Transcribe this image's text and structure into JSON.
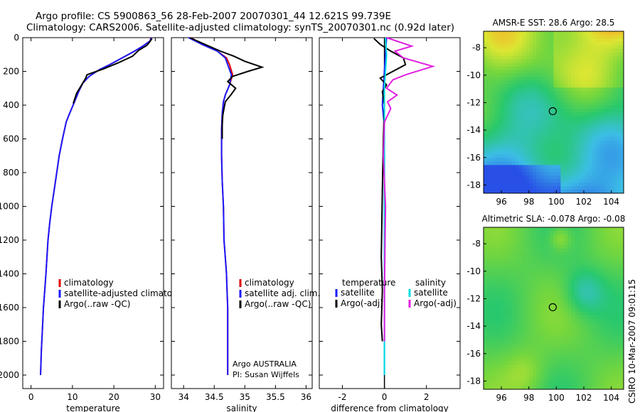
{
  "header": {
    "line1": "Argo profile: CS 5900863_56 28-Feb-2007 20070301_44 12.621S 99.739E",
    "line2": "Climatology: CARS2006. Satellite-adjusted climatology: synTS_20070301.nc (0.92d later)"
  },
  "side_label": "CSIRO 10-Mar-2007 09:01:15",
  "chart_data": [
    {
      "id": "temperature",
      "type": "line",
      "xlabel": "temperature",
      "ylabel": "",
      "xlim": [
        -2,
        32
      ],
      "ylim": [
        2080,
        0
      ],
      "xticks": [
        0,
        10,
        20,
        30
      ],
      "yticks": [
        0,
        200,
        400,
        600,
        800,
        1000,
        1200,
        1400,
        1600,
        1800,
        2000
      ],
      "legend": [
        "climatology",
        "satellite-adjusted climatology",
        "Argo(..raw -QC)"
      ],
      "series": [
        {
          "name": "climatology",
          "color": "#e00000",
          "x": [
            29.0,
            28.7,
            27.0,
            25.0,
            22.0,
            19.0,
            16.5,
            14.0,
            12.5,
            11.5,
            10.5,
            9.3,
            8.5,
            7.6,
            6.8,
            6.2,
            5.6,
            5.0,
            4.5,
            4.1,
            3.6,
            3.3,
            3.0,
            2.7,
            2.5,
            2.3
          ],
          "y": [
            0,
            20,
            50,
            80,
            120,
            160,
            190,
            230,
            270,
            320,
            380,
            450,
            500,
            600,
            700,
            800,
            900,
            1000,
            1100,
            1200,
            1400,
            1500,
            1600,
            1750,
            1850,
            2000
          ]
        },
        {
          "name": "satellite-adjusted climatology",
          "color": "#1a1aff",
          "x": [
            29.1,
            28.7,
            27.0,
            25.0,
            22.0,
            19.0,
            16.5,
            14.0,
            12.5,
            11.5,
            10.5,
            9.3,
            8.5,
            7.6,
            6.8,
            6.2,
            5.6,
            5.0,
            4.5,
            4.1,
            3.6,
            3.3,
            3.0,
            2.7,
            2.5,
            2.3
          ],
          "y": [
            0,
            20,
            50,
            80,
            120,
            160,
            190,
            230,
            270,
            320,
            380,
            450,
            500,
            600,
            700,
            800,
            900,
            1000,
            1100,
            1200,
            1400,
            1500,
            1600,
            1750,
            1850,
            2000
          ]
        },
        {
          "name": "Argo(..raw -QC)",
          "color": "#000000",
          "x": [
            29.2,
            28.8,
            28.0,
            26.0,
            24.5,
            21.0,
            17.5,
            13.5,
            13.2,
            11.0,
            10.2
          ],
          "y": [
            5,
            20,
            45,
            75,
            110,
            150,
            185,
            220,
            240,
            330,
            390
          ]
        }
      ]
    },
    {
      "id": "salinity",
      "type": "line",
      "xlabel": "salinity",
      "ylabel": "",
      "xlim": [
        33.8,
        36.1
      ],
      "ylim": [
        2080,
        0
      ],
      "xticks": [
        34,
        34.5,
        35,
        35.5,
        36
      ],
      "yticks": [
        0,
        200,
        400,
        600,
        800,
        1000,
        1200,
        1400,
        1600,
        1800,
        2000
      ],
      "legend": [
        "climatology",
        "satellite adj. clim.",
        "Argo(..raw -QC)"
      ],
      "series": [
        {
          "name": "climatology",
          "color": "#e00000",
          "x": [
            34.12,
            34.3,
            34.55,
            34.7,
            34.75,
            34.8,
            34.75,
            34.68,
            34.65,
            34.63,
            34.62,
            34.62,
            34.63,
            34.65,
            34.66,
            34.68,
            34.7,
            34.71,
            34.72,
            34.72,
            34.72
          ],
          "y": [
            0,
            40,
            80,
            120,
            160,
            220,
            280,
            340,
            380,
            450,
            550,
            700,
            850,
            1000,
            1200,
            1300,
            1400,
            1500,
            1600,
            1800,
            2000
          ]
        },
        {
          "name": "satellite adj. clim.",
          "color": "#1a1aff",
          "x": [
            34.08,
            34.3,
            34.55,
            34.68,
            34.72,
            34.78,
            34.75,
            34.68,
            34.65,
            34.63,
            34.62,
            34.62,
            34.63,
            34.65,
            34.66,
            34.68,
            34.7,
            34.71,
            34.72,
            34.72,
            34.72
          ],
          "y": [
            0,
            40,
            80,
            120,
            160,
            220,
            280,
            340,
            380,
            450,
            550,
            700,
            850,
            1000,
            1200,
            1300,
            1400,
            1500,
            1600,
            1800,
            2000
          ]
        },
        {
          "name": "Argo(..raw -QC)",
          "color": "#000000",
          "x": [
            34.1,
            34.35,
            34.6,
            34.82,
            35.0,
            35.28,
            35.05,
            34.8,
            34.72,
            34.85,
            34.77,
            34.68,
            34.66,
            34.64,
            34.63,
            34.63
          ],
          "y": [
            0,
            40,
            80,
            110,
            140,
            175,
            200,
            230,
            260,
            300,
            340,
            380,
            420,
            460,
            520,
            600
          ]
        }
      ]
    },
    {
      "id": "difference",
      "type": "line",
      "xlabel": "difference from climatology",
      "ylabel": "",
      "xlim": [
        -3.1,
        3.6
      ],
      "ylim": [
        2080,
        0
      ],
      "xticks": [
        -2,
        0,
        2
      ],
      "yticks": [
        0,
        200,
        400,
        600,
        800,
        1000,
        1200,
        1400,
        1600,
        1800,
        2000
      ],
      "legend_left_title": "temperature",
      "legend_right_title": "salinity",
      "legend_left": [
        "satellite",
        "Argo(-adj)"
      ],
      "legend_right": [
        "satellite",
        "Argo(-adj)"
      ],
      "series": [
        {
          "name": "temperature satellite",
          "color": "#1a1aff",
          "x": [
            0.1,
            0.05,
            0.0,
            -0.05,
            -0.1,
            -0.02,
            0.0,
            0.0,
            0.0,
            0.0
          ],
          "y": [
            0,
            100,
            200,
            300,
            400,
            500,
            700,
            1200,
            1600,
            2000
          ]
        },
        {
          "name": "temperature Argo(-adj)",
          "color": "#000000",
          "x": [
            -0.5,
            -0.2,
            0.3,
            0.9,
            1.0,
            0.4,
            -0.2,
            0.1,
            -0.1,
            0.0,
            -0.05,
            -0.1,
            -0.15,
            -0.1,
            -0.15,
            -0.1
          ],
          "y": [
            5,
            40,
            80,
            120,
            160,
            200,
            240,
            280,
            320,
            400,
            600,
            900,
            1300,
            1500,
            1700,
            1800
          ]
        },
        {
          "name": "salinity satellite",
          "color": "#00e0e0",
          "x": [
            0.05,
            0.1,
            0.05,
            0.0,
            0.0,
            0.0,
            0.0
          ],
          "y": [
            0,
            100,
            200,
            300,
            700,
            1500,
            2000
          ]
        },
        {
          "name": "salinity Argo(-adj)",
          "color": "#e020e0",
          "x": [
            0.1,
            1.3,
            0.5,
            0.9,
            2.3,
            1.0,
            0.4,
            0.1,
            0.6,
            0.15,
            0.3,
            0.0,
            -0.05,
            0.05,
            0.0,
            0.0
          ],
          "y": [
            0,
            50,
            80,
            120,
            170,
            220,
            250,
            300,
            340,
            380,
            420,
            500,
            700,
            1000,
            1500,
            1800
          ]
        }
      ]
    },
    {
      "id": "sst_map",
      "type": "heatmap",
      "title": "AMSR-E SST: 28.6 Argo: 28.5",
      "xlim": [
        94.7,
        104.9
      ],
      "ylim": [
        -18.6,
        -6.8
      ],
      "xticks": [
        96,
        98,
        100,
        102,
        104
      ],
      "yticks": [
        -8,
        -10,
        -12,
        -14,
        -16,
        -18
      ],
      "argo_position": {
        "lon": 99.739,
        "lat": -12.621
      }
    },
    {
      "id": "sla_map",
      "type": "heatmap",
      "title": "Altimetric SLA: -0.078 Argo: -0.08",
      "xlim": [
        94.7,
        104.9
      ],
      "ylim": [
        -18.6,
        -6.8
      ],
      "xticks": [
        96,
        98,
        100,
        102,
        104
      ],
      "yticks": [
        -8,
        -10,
        -12,
        -14,
        -16,
        -18
      ],
      "argo_position": {
        "lon": 99.739,
        "lat": -12.621
      }
    }
  ],
  "profile_panel_labels": {
    "line1": "Argo AUSTRALIA",
    "line2": "PI: Susan Wijffels"
  }
}
